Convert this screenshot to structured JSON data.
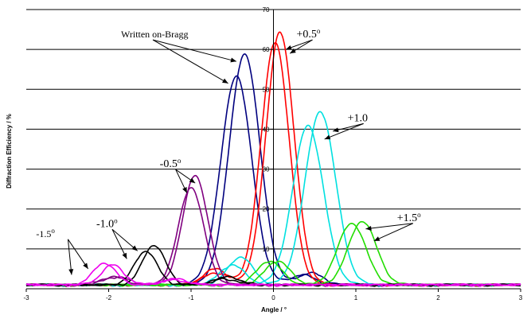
{
  "chart_data": {
    "type": "line",
    "title": "",
    "xlabel": "Angle / °",
    "ylabel": "Diffraction Efficiency / %",
    "xlim": [
      -3,
      3
    ],
    "ylim": [
      0,
      70
    ],
    "xticks": [
      -3,
      -2,
      -1,
      0,
      1,
      2,
      3
    ],
    "yticks": [
      10,
      20,
      30,
      40,
      50,
      60,
      70
    ],
    "grid": "horizontal",
    "colors": {
      "on_bragg": "#00007f",
      "plus_0_5": "#ff0000",
      "plus_1_0": "#00e0e0",
      "plus_1_5": "#22dd00",
      "minus_0_5": "#800080",
      "minus_1_0": "#000000",
      "minus_1_5": "#ee00ee"
    },
    "series": [
      {
        "group": "on_bragg",
        "peak_x": -0.35,
        "peak_y": 58,
        "width": 0.22,
        "side_x": 0.45,
        "side_y": 3
      },
      {
        "group": "on_bragg",
        "peak_x": -0.45,
        "peak_y": 52.5,
        "width": 0.22,
        "side_x": 0.35,
        "side_y": 2.5
      },
      {
        "group": "plus_0_5",
        "peak_x": 0.08,
        "peak_y": 63.5,
        "width": 0.2,
        "side_x": -0.7,
        "side_y": 4
      },
      {
        "group": "plus_0_5",
        "peak_x": 0.02,
        "peak_y": 61,
        "width": 0.2,
        "side_x": -0.7,
        "side_y": 3
      },
      {
        "group": "plus_1_0",
        "peak_x": 0.57,
        "peak_y": 43.5,
        "width": 0.22,
        "side_x": -0.4,
        "side_y": 7
      },
      {
        "group": "plus_1_0",
        "peak_x": 0.42,
        "peak_y": 40,
        "width": 0.22,
        "side_x": -0.5,
        "side_y": 5
      },
      {
        "group": "plus_1_5",
        "peak_x": 1.08,
        "peak_y": 16,
        "width": 0.2,
        "side_x": 0.05,
        "side_y": 6
      },
      {
        "group": "plus_1_5",
        "peak_x": 0.95,
        "peak_y": 15.5,
        "width": 0.2,
        "side_x": -0.05,
        "side_y": 6
      },
      {
        "group": "minus_0_5",
        "peak_x": -0.95,
        "peak_y": 27.5,
        "width": 0.18,
        "side_x": -1.9,
        "side_y": 2
      },
      {
        "group": "minus_0_5",
        "peak_x": -1.0,
        "peak_y": 24.5,
        "width": 0.18,
        "side_x": -1.95,
        "side_y": 2
      },
      {
        "group": "minus_1_0",
        "peak_x": -1.45,
        "peak_y": 10,
        "width": 0.16,
        "side_x": -0.55,
        "side_y": 2
      },
      {
        "group": "minus_1_0",
        "peak_x": -1.55,
        "peak_y": 8.5,
        "width": 0.16,
        "side_x": -0.6,
        "side_y": 1.5
      },
      {
        "group": "minus_1_5",
        "peak_x": -2.05,
        "peak_y": 5.5,
        "width": 0.16,
        "side_x": -1.2,
        "side_y": 1.5
      },
      {
        "group": "minus_1_5",
        "peak_x": -1.95,
        "peak_y": 5,
        "width": 0.16,
        "side_x": -1.2,
        "side_y": 1.2
      }
    ],
    "annotations": [
      {
        "key": "on_bragg",
        "text": "Written on-Bragg",
        "x": -1.85,
        "y": 63,
        "arrows": [
          [
            -0.45,
            57
          ],
          [
            -0.55,
            51.5
          ]
        ],
        "size": "small"
      },
      {
        "key": "p05",
        "text": "+0.5",
        "sup": "o",
        "x": 0.28,
        "y": 63,
        "arrows": [
          [
            0.15,
            60
          ],
          [
            0.2,
            59
          ]
        ],
        "size": "large"
      },
      {
        "key": "p10",
        "text": "+1.0",
        "x": 0.9,
        "y": 42,
        "arrows": [
          [
            0.72,
            39.5
          ],
          [
            0.62,
            37.5
          ]
        ],
        "size": "large"
      },
      {
        "key": "p15",
        "text": "+1.5",
        "sup": "o",
        "x": 1.5,
        "y": 17,
        "arrows": [
          [
            1.12,
            15
          ],
          [
            1.22,
            12
          ]
        ],
        "size": "large"
      },
      {
        "key": "m05",
        "text": "-0.5",
        "sup": "o",
        "x": -1.38,
        "y": 30.5,
        "arrows": [
          [
            -0.95,
            26.5
          ],
          [
            -1.05,
            24
          ]
        ],
        "size": "large"
      },
      {
        "key": "m10",
        "text": "-1.0",
        "sup": "o",
        "x": -2.15,
        "y": 15.5,
        "arrows": [
          [
            -1.65,
            9.5
          ],
          [
            -1.78,
            7.5
          ]
        ],
        "size": "large"
      },
      {
        "key": "m15",
        "text": "-1.5",
        "sup": "o",
        "x": -2.88,
        "y": 13,
        "arrows": [
          [
            -2.25,
            5
          ],
          [
            -2.45,
            3.5
          ]
        ],
        "size": "small"
      }
    ]
  }
}
